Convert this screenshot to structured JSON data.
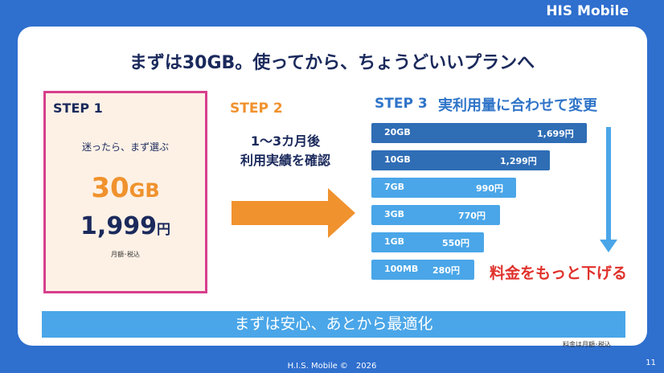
{
  "brand": "HIS Mobile",
  "title": "まずは30GB。使ってから、ちょうどいいプランへ",
  "step1": {
    "label": "STEP 1",
    "caption": "迷ったら、まず選ぶ",
    "data_amount": "30",
    "data_unit": "GB",
    "price": "1,999",
    "price_unit": "円",
    "note": "月額･税込"
  },
  "step2": {
    "label": "STEP 2",
    "lines": [
      "1〜3カ月後",
      "利用実績を確認"
    ]
  },
  "step3": {
    "label": "STEP 3",
    "heading": "実利用量に合わせて変更",
    "plans": [
      {
        "data": "20GB",
        "price": "1,699円"
      },
      {
        "data": "10GB",
        "price": "1,299円"
      },
      {
        "data": "7GB",
        "price": "990円"
      },
      {
        "data": "3GB",
        "price": "770円"
      },
      {
        "data": "1GB",
        "price": "550円"
      },
      {
        "data": "100MB",
        "price": "280円"
      }
    ],
    "arrow_text": "料金をもっと下げる"
  },
  "banner": "まずは安心、あとから最適化",
  "footnote": "料金は月額･税込",
  "footer": "H.I.S. Mobile ©　2026",
  "page_number": "11"
}
